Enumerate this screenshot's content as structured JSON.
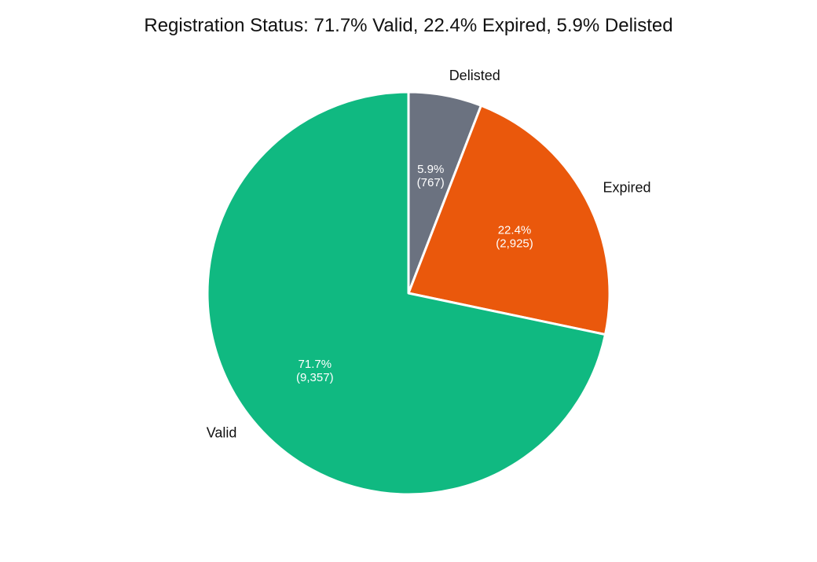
{
  "chart_data": {
    "type": "pie",
    "title": "Registration Status: 71.7% Valid, 22.4% Expired, 5.9% Delisted",
    "start_angle": "12 o'clock",
    "direction": "clockwise",
    "slices": [
      {
        "label": "Delisted",
        "value": 767,
        "percent_label": "5.9%",
        "count_label": "(767)",
        "color": "#6b7280"
      },
      {
        "label": "Expired",
        "value": 2925,
        "percent_label": "22.4%",
        "count_label": "(2,925)",
        "color": "#ea580c"
      },
      {
        "label": "Valid",
        "value": 9357,
        "percent_label": "71.7%",
        "count_label": "(9,357)",
        "color": "#10b981"
      }
    ]
  }
}
